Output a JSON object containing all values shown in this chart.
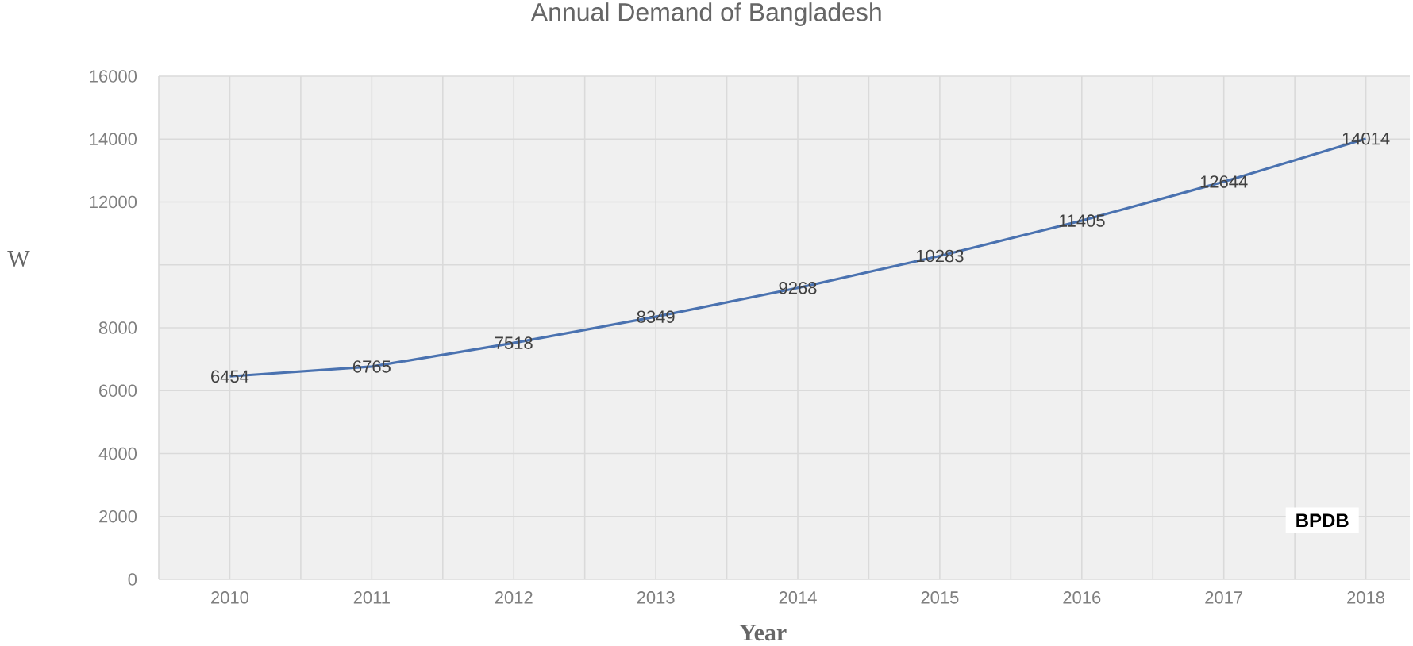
{
  "chart_data": {
    "type": "line",
    "title": "Annual Demand of Bangladesh",
    "xlabel": "Year",
    "ylabel": "W",
    "categories": [
      "2010",
      "2011",
      "2012",
      "2013",
      "2014",
      "2015",
      "2016",
      "2017",
      "2018"
    ],
    "values": [
      6454,
      6765,
      7518,
      8349,
      9268,
      10283,
      11405,
      12644,
      14014
    ],
    "color": "#4a72b0",
    "ylim": [
      0,
      16000
    ],
    "yticks": [
      0,
      2000,
      4000,
      6000,
      8000,
      {
        "value": 10000,
        "label": null
      },
      12000,
      14000,
      16000
    ],
    "grid": true,
    "data_labels": true,
    "annotations": [
      "BPDB"
    ]
  }
}
